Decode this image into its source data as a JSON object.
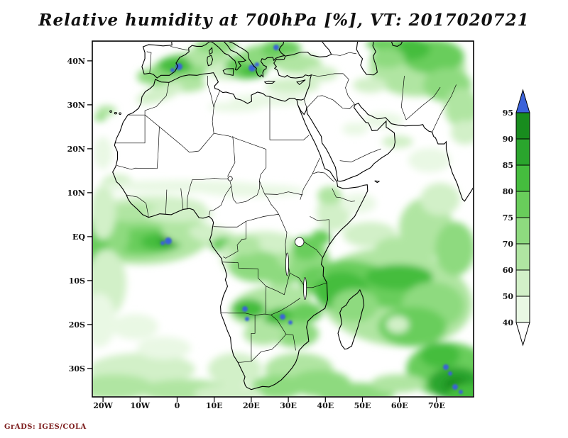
{
  "title": "Relative humidity at 700hPa [%], VT: 2017020721",
  "attribution": "GrADS: IGES/COLA",
  "axes": {
    "lat_labels": [
      "40N",
      "30N",
      "20N",
      "10N",
      "EQ",
      "10S",
      "20S",
      "30S"
    ],
    "lon_labels": [
      "20W",
      "10W",
      "0",
      "10E",
      "20E",
      "30E",
      "40E",
      "50E",
      "60E",
      "70E"
    ]
  },
  "colorbar": {
    "tick_labels": [
      "95",
      "90",
      "85",
      "80",
      "75",
      "70",
      "60",
      "50",
      "40"
    ],
    "levels": [
      40,
      50,
      60,
      70,
      75,
      80,
      85,
      90,
      95
    ],
    "colors_low_to_high": [
      "#ffffff",
      "#e9f8e4",
      "#d2f0c8",
      "#b0e5a2",
      "#8eda7f",
      "#69cd5b",
      "#45bd3e",
      "#2aa52d",
      "#188c1e",
      "#3b62d9"
    ],
    "under_color": "#ffffff",
    "over_color": "#3b62d9"
  },
  "chart_data": {
    "type": "heatmap",
    "title": "Relative humidity at 700hPa [%], VT: 2017020721",
    "variable": "Relative humidity",
    "pressure_level": "700hPa",
    "units": "%",
    "valid_time": "2017020721",
    "x_axis": {
      "label": "longitude",
      "ticks": [
        "20W",
        "10W",
        "0",
        "10E",
        "20E",
        "30E",
        "40E",
        "50E",
        "60E",
        "70E"
      ],
      "range": [
        "23W",
        "80E"
      ]
    },
    "y_axis": {
      "label": "latitude",
      "ticks": [
        "40N",
        "30N",
        "20N",
        "10N",
        "EQ",
        "10S",
        "20S",
        "30S"
      ],
      "range": [
        "37S",
        "45N"
      ]
    },
    "colorbar_levels": [
      40,
      50,
      60,
      70,
      75,
      80,
      85,
      90,
      95
    ],
    "colorbar_position": "right",
    "shading_low_to_high": [
      "#ffffff",
      "#e9f8e4",
      "#d2f0c8",
      "#b0e5a2",
      "#8eda7f",
      "#69cd5b",
      "#45bd3e",
      "#2aa52d",
      "#188c1e",
      "#3b62d9"
    ],
    "high_humidity_regions": [
      "equatorial Atlantic off West Africa (80-95%, >95% pocket near 2W,1S)",
      "Congo basin and East Africa (70-85%)",
      "southwest Indian Ocean / Madagascar cyclonic swirls (75-95%)",
      "Angola-Zambia-Zimbabwe (80-95%, >95% pockets near 18E,16S and 28E,18S)",
      "Iberia, Aegean and Turkey (80-95%, >95% pockets over Spain and Ionian Sea)",
      "Middle East / Iran sector top right (75-95%)",
      "Southern Ocean band near 35S (60-85%)",
      "southeast corner of domain (85-95%, >95% pockets near 72E,30S)"
    ],
    "low_humidity_regions": [
      "Sahara",
      "Arabian Peninsula interior",
      "Namibia coast",
      "Somalia"
    ]
  }
}
